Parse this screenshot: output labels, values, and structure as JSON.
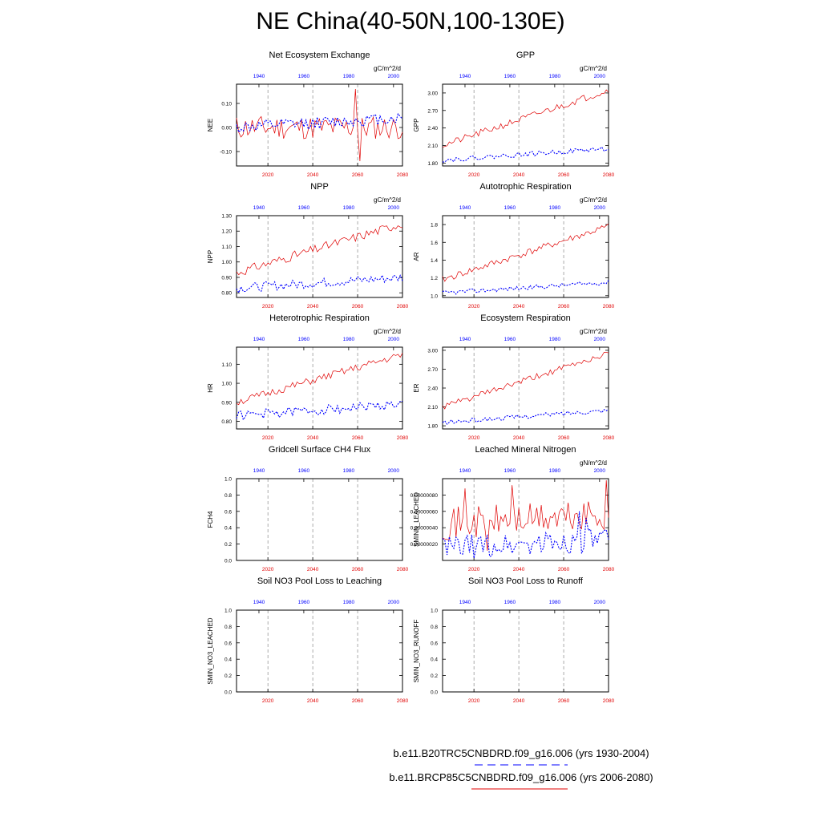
{
  "title": "NE China(40-50N,100-130E)",
  "colors": {
    "future": "#e00000",
    "historical": "#0000ff",
    "grid": "#888888"
  },
  "axes": {
    "bottom_ticks": [
      "2020",
      "2040",
      "2060",
      "2080"
    ],
    "bottom_range": [
      2006,
      2080
    ],
    "top_ticks": [
      "1940",
      "1960",
      "1980",
      "2000"
    ],
    "top_range": [
      1930,
      2004
    ]
  },
  "legend": {
    "historical": "b.e11.B20TRC5CNBDRD.f09_g16.006 (yrs 1930-2004)",
    "future": "b.e11.BRCP85C5CNBDRD.f09_g16.006 (yrs 2006-2080)"
  },
  "chart_data": [
    {
      "type": "line",
      "title": "Net Ecosystem Exchange",
      "ylabel": "NEE",
      "units": "gC/m^2/d",
      "ylim": [
        -0.16,
        0.18
      ],
      "yticks": [
        "0.10",
        "0.00",
        "-0.10"
      ],
      "ytick_values": [
        0.1,
        0.0,
        -0.1
      ],
      "series": [
        {
          "key": "future",
          "start": 0.0,
          "end": 0.0,
          "noise": 0.05,
          "spikes": [
            [
              53,
              0.16
            ],
            [
              55,
              -0.14
            ]
          ],
          "seed": 11
        },
        {
          "key": "historical",
          "start": 0.0,
          "end": 0.04,
          "noise": 0.025,
          "seed": 12
        }
      ]
    },
    {
      "type": "line",
      "title": "GPP",
      "ylabel": "GPP",
      "units": "gC/m^2/d",
      "ylim": [
        1.75,
        3.15
      ],
      "yticks": [
        "3.00",
        "2.70",
        "2.40",
        "2.10",
        "1.80"
      ],
      "ytick_values": [
        3.0,
        2.7,
        2.4,
        2.1,
        1.8
      ],
      "series": [
        {
          "key": "future",
          "start": 2.1,
          "end": 3.05,
          "noise": 0.06,
          "seed": 21
        },
        {
          "key": "historical",
          "start": 1.85,
          "end": 2.05,
          "noise": 0.04,
          "seed": 22
        }
      ]
    },
    {
      "type": "line",
      "title": "NPP",
      "ylabel": "NPP",
      "units": "gC/m^2/d",
      "ylim": [
        0.77,
        1.3
      ],
      "yticks": [
        "1.30",
        "1.20",
        "1.10",
        "1.00",
        "0.90",
        "0.80"
      ],
      "ytick_values": [
        1.3,
        1.2,
        1.1,
        1.0,
        0.9,
        0.8
      ],
      "series": [
        {
          "key": "future",
          "start": 0.93,
          "end": 1.25,
          "noise": 0.03,
          "seed": 31
        },
        {
          "key": "historical",
          "start": 0.83,
          "end": 0.9,
          "noise": 0.03,
          "seed": 32
        }
      ]
    },
    {
      "type": "line",
      "title": "Autotrophic Respiration",
      "ylabel": "AR",
      "units": "gC/m^2/d",
      "ylim": [
        0.98,
        1.9
      ],
      "yticks": [
        "1.8",
        "1.6",
        "1.4",
        "1.2",
        "1.0"
      ],
      "ytick_values": [
        1.8,
        1.6,
        1.4,
        1.2,
        1.0
      ],
      "series": [
        {
          "key": "future",
          "start": 1.18,
          "end": 1.78,
          "noise": 0.04,
          "seed": 41
        },
        {
          "key": "historical",
          "start": 1.03,
          "end": 1.15,
          "noise": 0.025,
          "seed": 42
        }
      ]
    },
    {
      "type": "line",
      "title": "Heterotrophic Respiration",
      "ylabel": "HR",
      "units": "gC/m^2/d",
      "ylim": [
        0.76,
        1.19
      ],
      "yticks": [
        "1.10",
        "1.00",
        "0.90",
        "0.80"
      ],
      "ytick_values": [
        1.1,
        1.0,
        0.9,
        0.8
      ],
      "series": [
        {
          "key": "future",
          "start": 0.9,
          "end": 1.15,
          "noise": 0.02,
          "seed": 51
        },
        {
          "key": "historical",
          "start": 0.83,
          "end": 0.89,
          "noise": 0.025,
          "seed": 52
        }
      ]
    },
    {
      "type": "line",
      "title": "Ecosystem Respiration",
      "ylabel": "ER",
      "units": "gC/m^2/d",
      "ylim": [
        1.75,
        3.05
      ],
      "yticks": [
        "3.00",
        "2.70",
        "2.40",
        "2.10",
        "1.80"
      ],
      "ytick_values": [
        3.0,
        2.7,
        2.4,
        2.1,
        1.8
      ],
      "series": [
        {
          "key": "future",
          "start": 2.1,
          "end": 2.95,
          "noise": 0.05,
          "seed": 61
        },
        {
          "key": "historical",
          "start": 1.85,
          "end": 2.05,
          "noise": 0.035,
          "seed": 62
        }
      ]
    },
    {
      "type": "line",
      "title": "Gridcell Surface CH4 Flux",
      "ylabel": "FCH4",
      "units": "",
      "ylim": [
        0.0,
        1.0
      ],
      "yticks": [
        "1.0",
        "0.8",
        "0.6",
        "0.4",
        "0.2",
        "0.0"
      ],
      "ytick_values": [
        1.0,
        0.8,
        0.6,
        0.4,
        0.2,
        0.0
      ],
      "series": []
    },
    {
      "type": "line",
      "title": "Leached Mineral Nitrogen",
      "ylabel": "SMINN_LEACHED",
      "units": "gN/m^2/d",
      "ylim": [
        0.0,
        1e-07
      ],
      "yticks": [
        "0.00000080",
        "0.00000060",
        "0.00000040",
        "0.00000020"
      ],
      "ytick_values": [
        8e-08,
        6e-08,
        4e-08,
        2e-08
      ],
      "series": [
        {
          "key": "future",
          "start": 4.5e-08,
          "end": 5.5e-08,
          "noise": 2e-08,
          "spikes": [
            [
              10,
              8.8e-08
            ],
            [
              31,
              9.2e-08
            ],
            [
              73,
              9.8e-08
            ],
            [
              20,
              1.2e-08
            ]
          ],
          "seed": 71
        },
        {
          "key": "historical",
          "start": 1.5e-08,
          "end": 2.5e-08,
          "noise": 1.5e-08,
          "spikes": [
            [
              61,
              6e-08
            ],
            [
              64,
              5.2e-08
            ]
          ],
          "seed": 72
        }
      ]
    },
    {
      "type": "line",
      "title": "Soil NO3 Pool Loss to Leaching",
      "ylabel": "SMIN_NO3_LEACHED",
      "units": "",
      "ylim": [
        0.0,
        1.0
      ],
      "yticks": [
        "1.0",
        "0.8",
        "0.6",
        "0.4",
        "0.2",
        "0.0"
      ],
      "ytick_values": [
        1.0,
        0.8,
        0.6,
        0.4,
        0.2,
        0.0
      ],
      "series": []
    },
    {
      "type": "line",
      "title": "Soil NO3 Pool Loss to Runoff",
      "ylabel": "SMIN_NO3_RUNOFF",
      "units": "",
      "ylim": [
        0.0,
        1.0
      ],
      "yticks": [
        "1.0",
        "0.8",
        "0.6",
        "0.4",
        "0.2",
        "0.0"
      ],
      "ytick_values": [
        1.0,
        0.8,
        0.6,
        0.4,
        0.2,
        0.0
      ],
      "series": []
    }
  ]
}
